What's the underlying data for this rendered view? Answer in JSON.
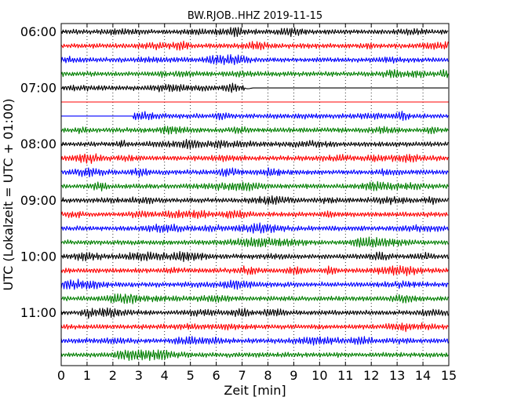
{
  "chart_data": {
    "type": "line",
    "title": "BW.RJOB..HHZ 2019-11-15",
    "xlabel": "Zeit  [min]",
    "ylabel": "UTC (Lokalzeit = UTC + 01:00)",
    "xlim": [
      0,
      15
    ],
    "x_ticks": [
      "0",
      "1",
      "2",
      "3",
      "4",
      "5",
      "6",
      "7",
      "8",
      "9",
      "10",
      "11",
      "12",
      "13",
      "14",
      "15"
    ],
    "y_ticks": [
      "06:00",
      "07:00",
      "08:00",
      "09:00",
      "10:00",
      "11:00"
    ],
    "trace_interval_min": 15,
    "trace_colors": [
      "#000000",
      "#ff0000",
      "#0000ff",
      "#007f00"
    ],
    "traces": [
      {
        "start": "06:00",
        "status": "signal"
      },
      {
        "start": "06:15",
        "status": "signal"
      },
      {
        "start": "06:30",
        "status": "signal"
      },
      {
        "start": "06:45",
        "status": "signal"
      },
      {
        "start": "07:00",
        "status": "signal",
        "data_end_min": 7.1
      },
      {
        "start": "07:15",
        "status": "no-data"
      },
      {
        "start": "07:30",
        "status": "signal",
        "data_start_min": 2.8
      },
      {
        "start": "07:45",
        "status": "signal"
      },
      {
        "start": "08:00",
        "status": "signal"
      },
      {
        "start": "08:15",
        "status": "signal"
      },
      {
        "start": "08:30",
        "status": "signal"
      },
      {
        "start": "08:45",
        "status": "signal"
      },
      {
        "start": "09:00",
        "status": "signal"
      },
      {
        "start": "09:15",
        "status": "signal"
      },
      {
        "start": "09:30",
        "status": "signal"
      },
      {
        "start": "09:45",
        "status": "signal"
      },
      {
        "start": "10:00",
        "status": "signal"
      },
      {
        "start": "10:15",
        "status": "signal"
      },
      {
        "start": "10:30",
        "status": "signal"
      },
      {
        "start": "10:45",
        "status": "signal"
      },
      {
        "start": "11:00",
        "status": "signal"
      },
      {
        "start": "11:15",
        "status": "signal"
      },
      {
        "start": "11:30",
        "status": "signal"
      },
      {
        "start": "11:45",
        "status": "signal"
      }
    ],
    "grid": "vertical-dotted",
    "legend": "none"
  }
}
